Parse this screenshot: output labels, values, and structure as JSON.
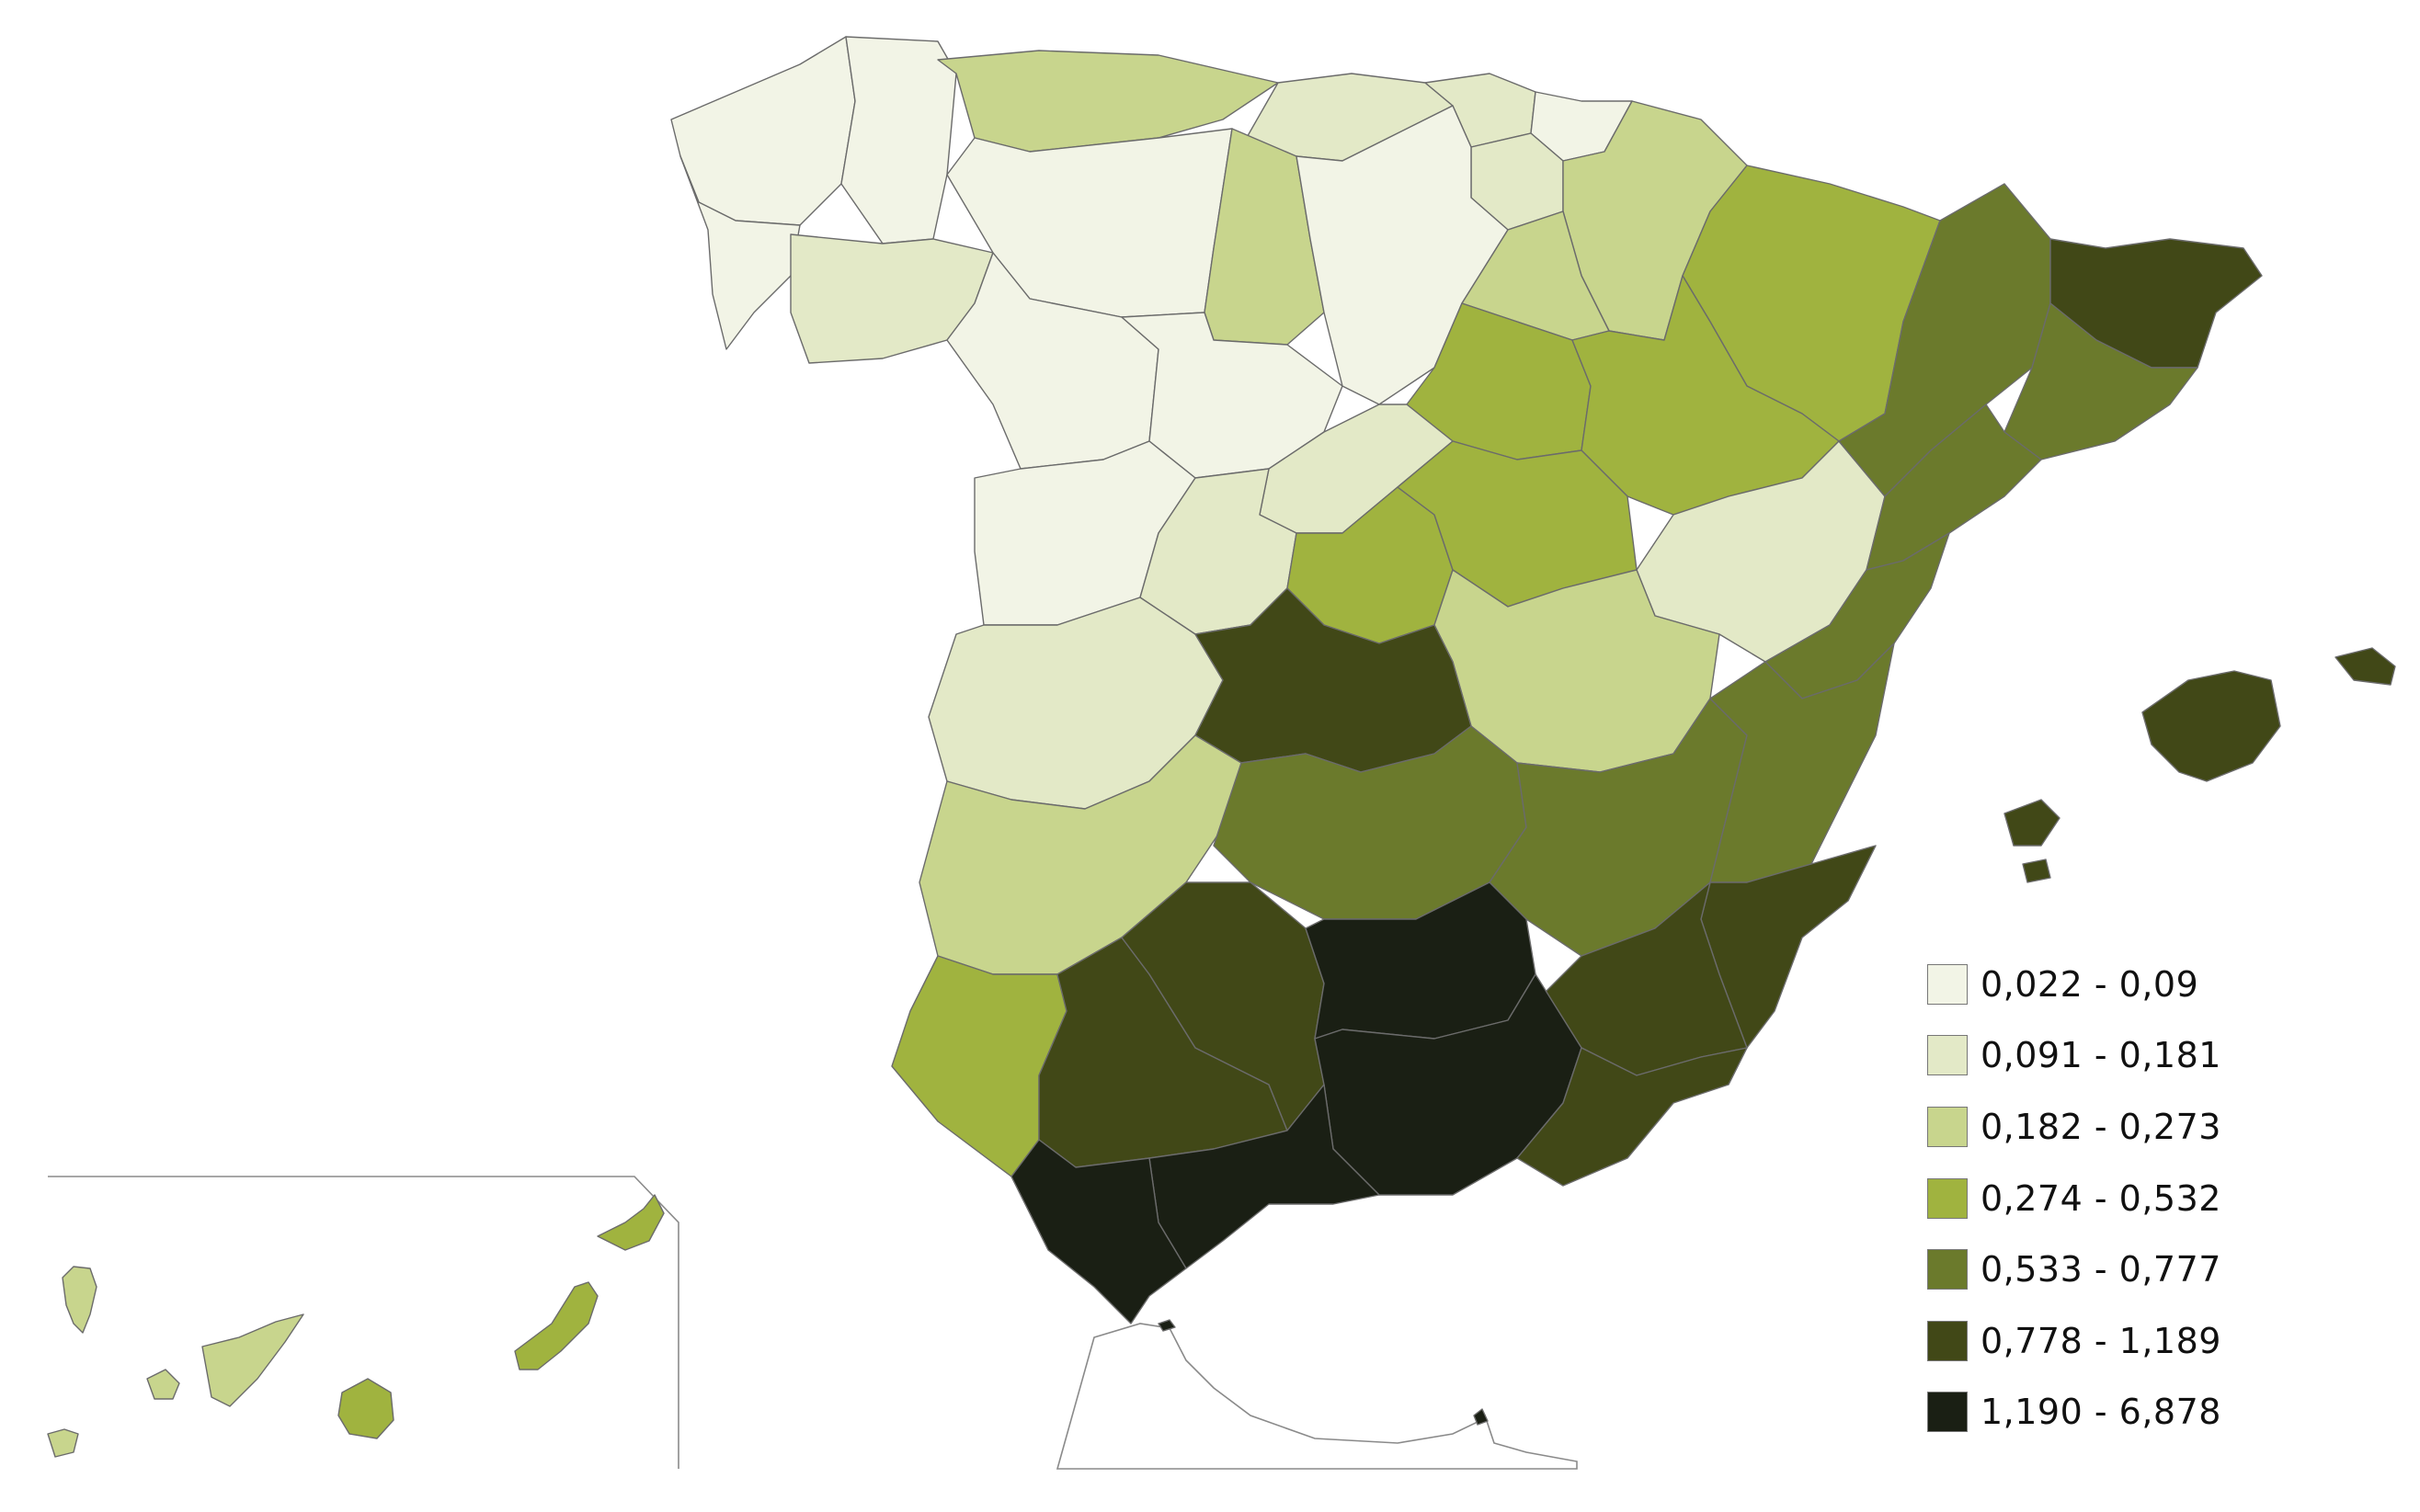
{
  "legend": {
    "items": [
      {
        "label": "0,022 - 0,09",
        "color": "#f2f4e6"
      },
      {
        "label": "0,091 - 0,181",
        "color": "#e3e9c7"
      },
      {
        "label": "0,182 - 0,273",
        "color": "#c8d58d"
      },
      {
        "label": "0,274 - 0,532",
        "color": "#a0b33f"
      },
      {
        "label": "0,533 - 0,777",
        "color": "#6b7a2c"
      },
      {
        "label": "0,778 - 1,189",
        "color": "#414817"
      },
      {
        "label": "1,190 - 6,878",
        "color": "#1a1f14"
      }
    ]
  },
  "map_data": {
    "provinces": [
      {
        "id": "A Coruña",
        "class": 0
      },
      {
        "id": "Lugo",
        "class": 0
      },
      {
        "id": "Pontevedra",
        "class": 0
      },
      {
        "id": "Ourense",
        "class": 1
      },
      {
        "id": "Asturias",
        "class": 2
      },
      {
        "id": "Cantabria",
        "class": 1
      },
      {
        "id": "León",
        "class": 0
      },
      {
        "id": "Palencia",
        "class": 2
      },
      {
        "id": "Burgos",
        "class": 0
      },
      {
        "id": "Zamora",
        "class": 0
      },
      {
        "id": "Valladolid",
        "class": 0
      },
      {
        "id": "Soria",
        "class": 3
      },
      {
        "id": "Segovia",
        "class": 1
      },
      {
        "id": "Salamanca",
        "class": 0
      },
      {
        "id": "Ávila",
        "class": 1
      },
      {
        "id": "Vizcaya",
        "class": 1
      },
      {
        "id": "Guipúzcoa",
        "class": 0
      },
      {
        "id": "Álava",
        "class": 1
      },
      {
        "id": "Navarra",
        "class": 2
      },
      {
        "id": "La Rioja",
        "class": 2
      },
      {
        "id": "Huesca",
        "class": 3
      },
      {
        "id": "Zaragoza",
        "class": 3
      },
      {
        "id": "Teruel",
        "class": 1
      },
      {
        "id": "Lleida",
        "class": 4
      },
      {
        "id": "Girona",
        "class": 5
      },
      {
        "id": "Barcelona",
        "class": 4
      },
      {
        "id": "Tarragona",
        "class": 4
      },
      {
        "id": "Madrid",
        "class": 3
      },
      {
        "id": "Guadalajara",
        "class": 3
      },
      {
        "id": "Cuenca",
        "class": 2
      },
      {
        "id": "Cáceres",
        "class": 1
      },
      {
        "id": "Toledo",
        "class": 5
      },
      {
        "id": "Ciudad Real",
        "class": 4
      },
      {
        "id": "Albacete",
        "class": 4
      },
      {
        "id": "Castellón",
        "class": 4
      },
      {
        "id": "Valencia",
        "class": 4
      },
      {
        "id": "Alicante",
        "class": 5
      },
      {
        "id": "Murcia",
        "class": 5
      },
      {
        "id": "Badajoz",
        "class": 2
      },
      {
        "id": "Huelva",
        "class": 3
      },
      {
        "id": "Sevilla",
        "class": 5
      },
      {
        "id": "Córdoba",
        "class": 5
      },
      {
        "id": "Jaén",
        "class": 6
      },
      {
        "id": "Granada",
        "class": 6
      },
      {
        "id": "Almería",
        "class": 5
      },
      {
        "id": "Málaga",
        "class": 6
      },
      {
        "id": "Cádiz",
        "class": 6
      },
      {
        "id": "Islas Baleares",
        "class": 5
      },
      {
        "id": "Santa Cruz de Tenerife",
        "class": 2
      },
      {
        "id": "Las Palmas",
        "class": 3
      },
      {
        "id": "Ceuta",
        "class": 6
      },
      {
        "id": "Melilla",
        "class": 6
      }
    ]
  }
}
